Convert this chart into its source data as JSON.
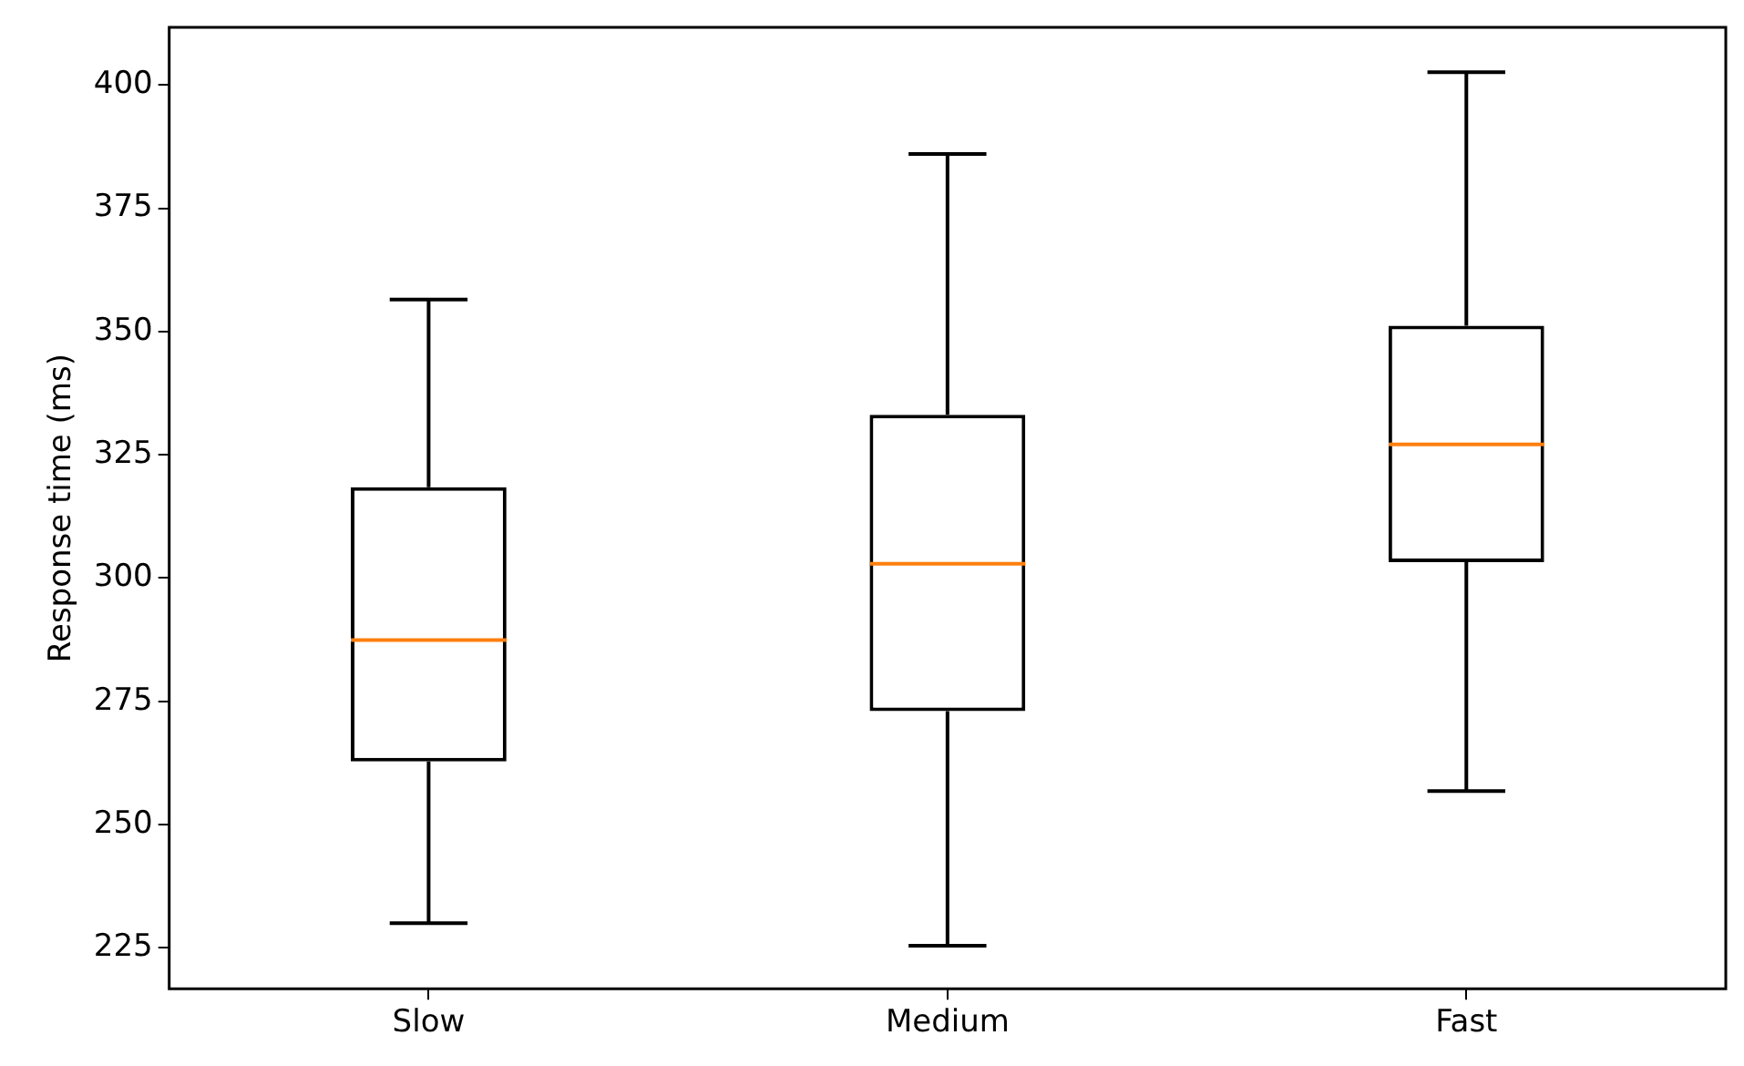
{
  "chart_data": {
    "type": "box",
    "ylabel": "Response time (ms)",
    "categories": [
      "Slow",
      "Medium",
      "Fast"
    ],
    "boxes": [
      {
        "low": 230,
        "q1": 262.8,
        "median": 287.4,
        "q3": 318.4,
        "high": 356.5
      },
      {
        "low": 225.4,
        "q1": 273,
        "median": 302.9,
        "q3": 333.1,
        "high": 386
      },
      {
        "low": 256.8,
        "q1": 303.2,
        "median": 327.1,
        "q3": 351.2,
        "high": 402.6
      }
    ],
    "color": "#000000",
    "ylim": [
      216.7,
      411.7
    ],
    "yticks": [
      225,
      250,
      275,
      300,
      325,
      350,
      375,
      400
    ],
    "grid": false,
    "legend": false
  }
}
